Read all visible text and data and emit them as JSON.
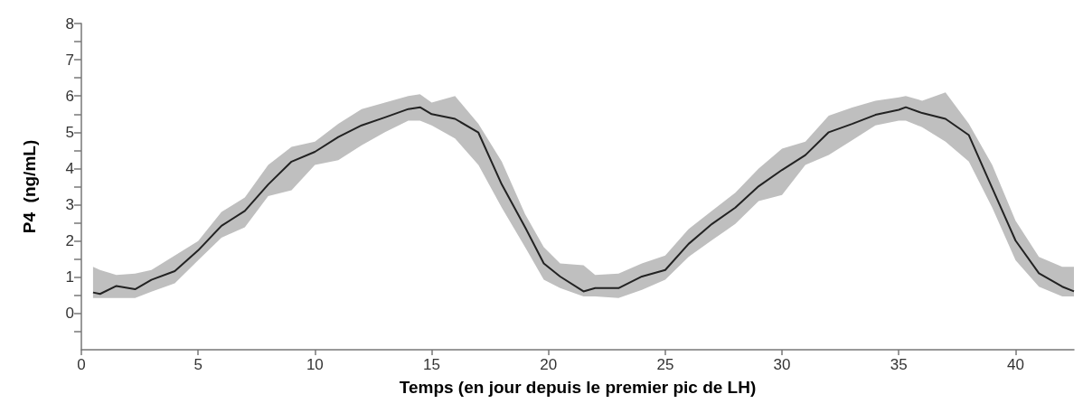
{
  "chart_data": {
    "type": "line",
    "xlabel": "Temps (en jour depuis le premier pic de LH)",
    "ylabel": "P4  (ng/mL)",
    "xlim": [
      0,
      42.5
    ],
    "xticks": [
      0,
      5,
      10,
      15,
      20,
      25,
      30,
      35,
      40
    ],
    "ylim": [
      -1,
      8
    ],
    "yticks": [
      {
        "value": -0.5,
        "label": null
      },
      0,
      {
        "value": 0.5,
        "label": null
      },
      1,
      {
        "value": 1.5,
        "label": null
      },
      2,
      {
        "value": 2.5,
        "label": null
      },
      3,
      {
        "value": 3.5,
        "label": null
      },
      4,
      {
        "value": 4.5,
        "label": null
      },
      5,
      {
        "value": 5.5,
        "label": null
      },
      6,
      {
        "value": 6.5,
        "label": null
      },
      7,
      {
        "value": 7.5,
        "label": null
      },
      8
    ],
    "grid": false,
    "marker": "none",
    "line_style": "solid",
    "series": [
      {
        "color": "#222222",
        "x": [
          0.5,
          0.8,
          1.5,
          2.3,
          3,
          4,
          5,
          6,
          7,
          8,
          9,
          10,
          11,
          12,
          13,
          14,
          14.5,
          15,
          16,
          17,
          18,
          19,
          19.8,
          20.5,
          21.5,
          22,
          23,
          24,
          25,
          26,
          27,
          28,
          29,
          30,
          31,
          32,
          33,
          34,
          35,
          35.3,
          36,
          37,
          38,
          39,
          40,
          41,
          42,
          42.5
        ],
        "values": [
          0.58,
          0.54,
          0.76,
          0.67,
          0.93,
          1.17,
          1.74,
          2.42,
          2.83,
          3.56,
          4.19,
          4.46,
          4.87,
          5.19,
          5.41,
          5.64,
          5.69,
          5.5,
          5.37,
          4.99,
          3.56,
          2.38,
          1.38,
          1.02,
          0.61,
          0.7,
          0.7,
          1.02,
          1.2,
          1.92,
          2.47,
          2.92,
          3.51,
          3.96,
          4.37,
          5.0,
          5.23,
          5.48,
          5.62,
          5.69,
          5.53,
          5.37,
          4.92,
          3.46,
          2.01,
          1.11,
          0.74,
          0.61
        ],
        "upper": [
          1.29,
          1.2,
          1.06,
          1.1,
          1.2,
          1.6,
          2.0,
          2.8,
          3.2,
          4.1,
          4.6,
          4.74,
          5.23,
          5.64,
          5.82,
          6.0,
          6.05,
          5.82,
          6.0,
          5.23,
          4.19,
          2.74,
          1.83,
          1.38,
          1.33,
          1.06,
          1.1,
          1.38,
          1.6,
          2.33,
          2.83,
          3.33,
          4.0,
          4.55,
          4.74,
          5.46,
          5.68,
          5.87,
          5.96,
          6.0,
          5.87,
          6.1,
          5.23,
          4.1,
          2.56,
          1.56,
          1.29,
          1.29
        ],
        "lower": [
          0.43,
          0.43,
          0.43,
          0.43,
          0.6,
          0.83,
          1.47,
          2.09,
          2.38,
          3.24,
          3.4,
          4.1,
          4.23,
          4.64,
          5.0,
          5.32,
          5.32,
          5.19,
          4.83,
          4.1,
          2.92,
          1.83,
          0.93,
          0.7,
          0.47,
          0.47,
          0.43,
          0.65,
          0.93,
          1.56,
          2.02,
          2.47,
          3.1,
          3.27,
          4.1,
          4.37,
          4.78,
          5.19,
          5.32,
          5.32,
          5.14,
          4.74,
          4.19,
          2.92,
          1.47,
          0.74,
          0.47,
          0.47
        ]
      }
    ]
  }
}
